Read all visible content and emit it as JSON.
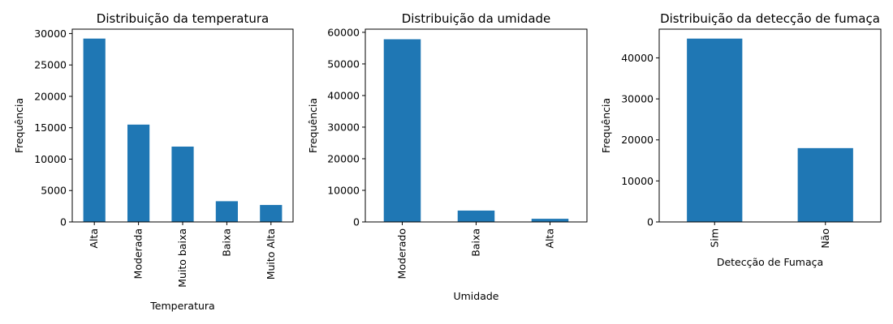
{
  "colors": {
    "bar": "#1f77b4"
  },
  "chart_data": [
    {
      "type": "bar",
      "title": "Distribuição da temperatura",
      "xlabel": "Temperatura",
      "ylabel": "Frequência",
      "categories": [
        "Alta",
        "Moderada",
        "Muito baixa",
        "Baixa",
        "Muito Alta"
      ],
      "values": [
        29200,
        15500,
        12000,
        3300,
        2700
      ],
      "ylim": [
        0,
        30700
      ],
      "yticks": [
        0,
        5000,
        10000,
        15000,
        20000,
        25000,
        30000
      ],
      "ytick_labels": [
        "0",
        "5000",
        "10000",
        "15000",
        "20000",
        "25000",
        "30000"
      ],
      "grid": false,
      "legend": "none"
    },
    {
      "type": "bar",
      "title": "Distribuição da umidade",
      "xlabel": "Umidade",
      "ylabel": "Frequência",
      "categories": [
        "Moderado",
        "Baixa",
        "Alta"
      ],
      "values": [
        57800,
        3600,
        1000
      ],
      "ylim": [
        0,
        61000
      ],
      "yticks": [
        0,
        10000,
        20000,
        30000,
        40000,
        50000,
        60000
      ],
      "ytick_labels": [
        "0",
        "10000",
        "20000",
        "30000",
        "40000",
        "50000",
        "60000"
      ],
      "grid": false,
      "legend": "none"
    },
    {
      "type": "bar",
      "title": "Distribuição da detecção de fumaça",
      "xlabel": "Detecção de Fumaça",
      "ylabel": "Frequência",
      "categories": [
        "Sim",
        "Não"
      ],
      "values": [
        44700,
        18000
      ],
      "ylim": [
        0,
        47000
      ],
      "yticks": [
        0,
        10000,
        20000,
        30000,
        40000
      ],
      "ytick_labels": [
        "0",
        "10000",
        "20000",
        "30000",
        "40000"
      ],
      "grid": false,
      "legend": "none"
    }
  ]
}
